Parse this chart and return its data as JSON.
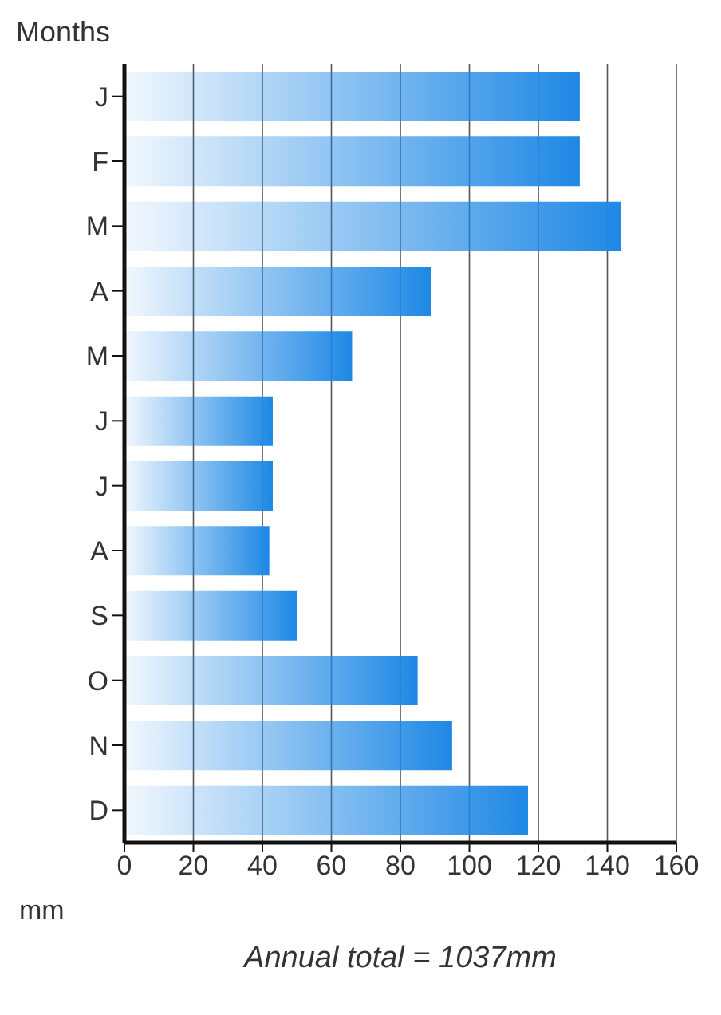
{
  "chart_data": {
    "type": "bar",
    "orientation": "horizontal",
    "ylabel": "Months",
    "xlabel": "mm",
    "annotations": [
      "Annual total = 1037mm"
    ],
    "categories": [
      "J",
      "F",
      "M",
      "A",
      "M",
      "J",
      "J",
      "A",
      "S",
      "O",
      "N",
      "D"
    ],
    "values": [
      132,
      132,
      144,
      89,
      66,
      43,
      43,
      42,
      50,
      85,
      95,
      117
    ],
    "color": "#1e88e5",
    "xlim": [
      0,
      160
    ],
    "xticks": [
      0,
      20,
      40,
      60,
      80,
      100,
      120,
      140,
      160
    ],
    "grid": "x"
  }
}
